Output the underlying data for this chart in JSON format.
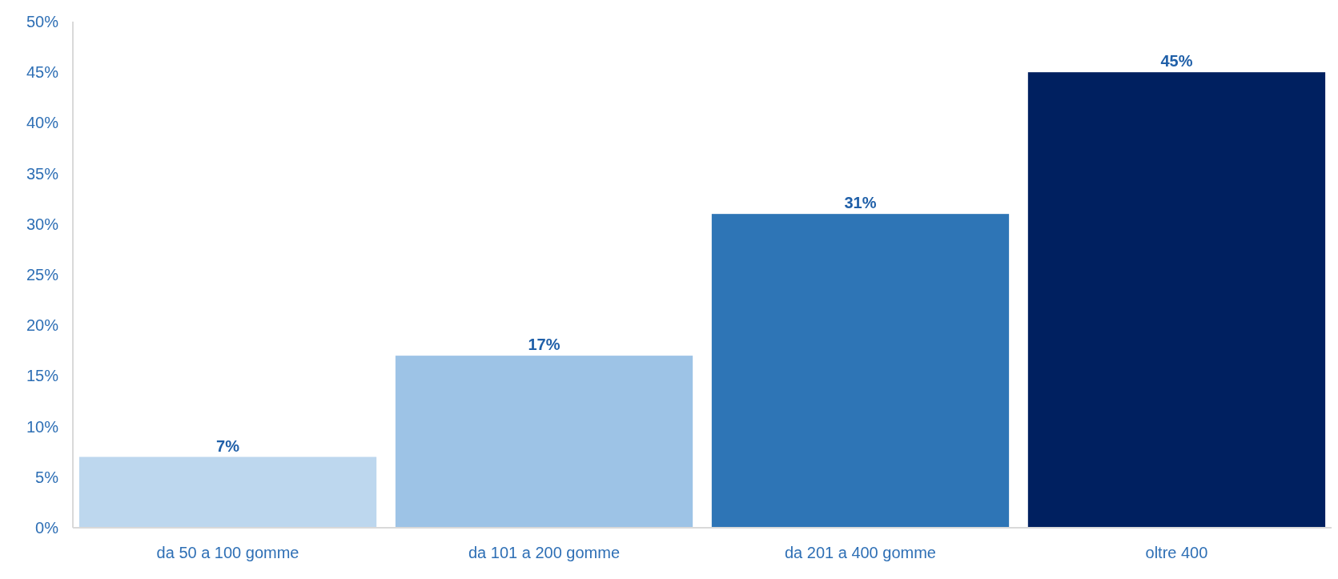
{
  "chart_data": {
    "type": "bar",
    "categories": [
      "da 50 a 100 gomme",
      "da 101 a 200 gomme",
      "da 201 a 400 gomme",
      "oltre 400"
    ],
    "values": [
      7,
      17,
      31,
      45
    ],
    "colors": [
      "#bdd7ee",
      "#9dc3e6",
      "#2e75b6",
      "#002060"
    ],
    "ylim": [
      0,
      50
    ],
    "yticks": [
      {
        "value": 0,
        "label": "0%"
      },
      {
        "value": 5,
        "label": "5%"
      },
      {
        "value": 10,
        "label": "10%"
      },
      {
        "value": 15,
        "label": "15%"
      },
      {
        "value": 20,
        "label": "20%"
      },
      {
        "value": 25,
        "label": "25%"
      },
      {
        "value": 30,
        "label": "30%"
      },
      {
        "value": 35,
        "label": "35%"
      },
      {
        "value": 40,
        "label": "40%"
      },
      {
        "value": 45,
        "label": "45%"
      },
      {
        "value": 50,
        "label": "50%"
      }
    ],
    "value_labels": [
      "7%",
      "17%",
      "31%",
      "45%"
    ],
    "grid": false
  }
}
